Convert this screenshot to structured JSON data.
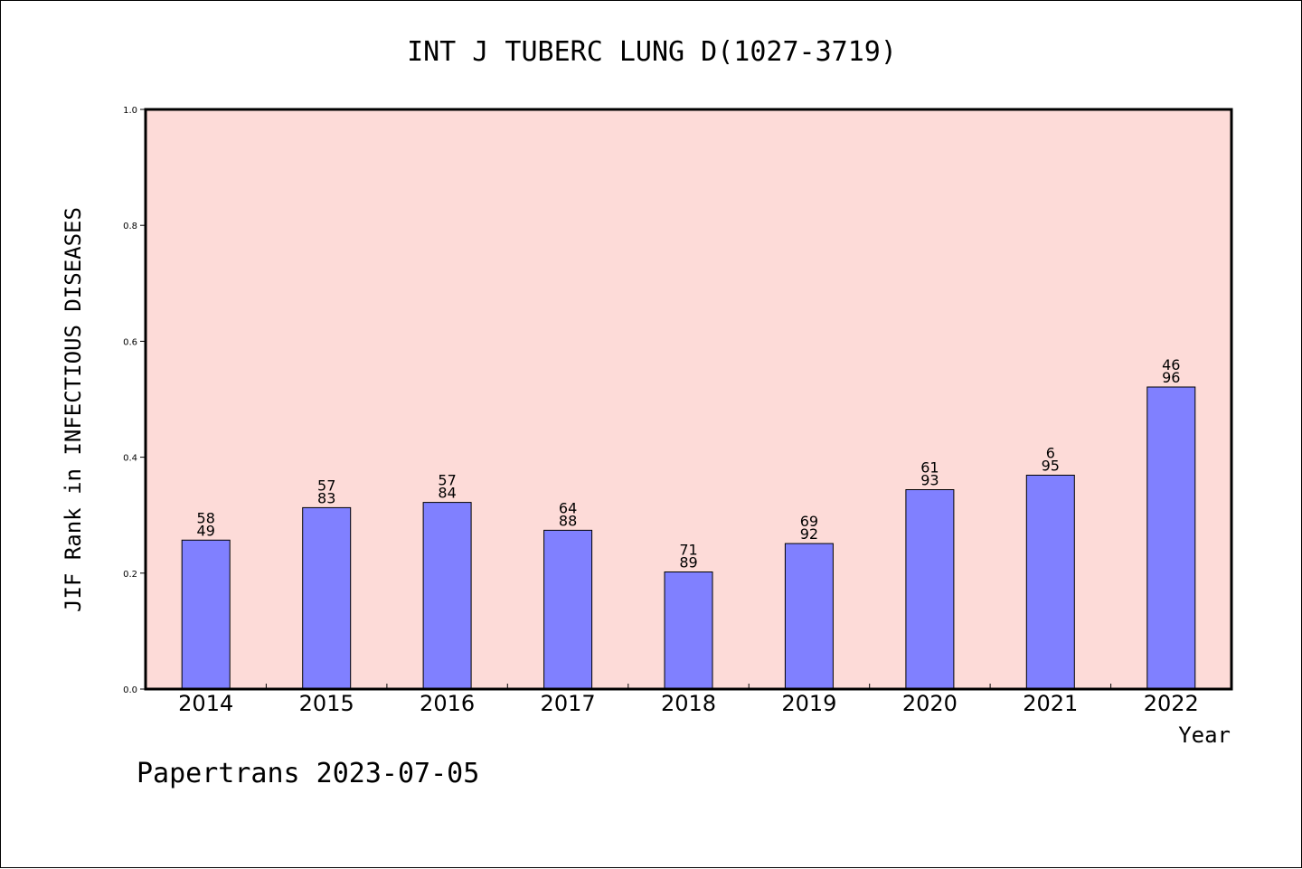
{
  "chart_data": {
    "type": "bar",
    "title": "INT J TUBERC LUNG D(1027-3719)",
    "xlabel": "Year",
    "ylabel": "JIF Rank in INFECTIOUS DISEASES",
    "categories": [
      "2014",
      "2015",
      "2016",
      "2017",
      "2018",
      "2019",
      "2020",
      "2021",
      "2022"
    ],
    "values": [
      0.257,
      0.313,
      0.322,
      0.274,
      0.202,
      0.251,
      0.344,
      0.369,
      0.521
    ],
    "annotations": [
      {
        "top": "58",
        "bottom": "49"
      },
      {
        "top": "57",
        "bottom": "83"
      },
      {
        "top": "57",
        "bottom": "84"
      },
      {
        "top": "64",
        "bottom": "88"
      },
      {
        "top": "71",
        "bottom": "89"
      },
      {
        "top": "69",
        "bottom": "92"
      },
      {
        "top": "61",
        "bottom": "93"
      },
      {
        "top": "6",
        "bottom": "95"
      },
      {
        "top": "46",
        "bottom": "96"
      }
    ],
    "ylim": [
      0.0,
      1.0
    ],
    "yticks": [
      "0.0",
      "0.2",
      "0.4",
      "0.6",
      "0.8",
      "1.0"
    ],
    "grid": false,
    "colors": {
      "plot_background": "#fddbd8",
      "bar_fill": "#8080ff",
      "bar_edge": "#000000"
    }
  },
  "footer": {
    "text": "Papertrans 2023-07-05"
  }
}
